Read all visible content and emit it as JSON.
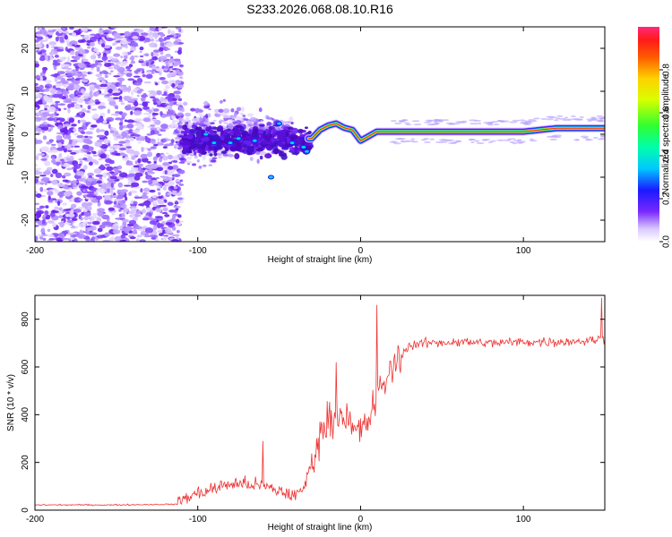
{
  "title": "S233.2026.068.08.10.R16",
  "chart_data": [
    {
      "type": "heatmap",
      "title": "S233.2026.068.08.10.R16",
      "xlabel": "Height of straight line (km)",
      "ylabel": "Frequency (Hz)",
      "xlim": [
        -200,
        150
      ],
      "ylim": [
        -25,
        25
      ],
      "xticks": [
        -200,
        -100,
        0,
        100
      ],
      "xtick_labels": [
        "-200",
        "-100",
        "0",
        "100"
      ],
      "yticks": [
        -20,
        -10,
        0,
        10,
        20
      ],
      "ytick_labels": [
        "-20",
        "-10",
        "0",
        "10",
        "20"
      ],
      "ridge": {
        "description_points_x": [
          -30,
          -25,
          -20,
          -15,
          -10,
          -5,
          0,
          10,
          30,
          60,
          100,
          120,
          150
        ],
        "frequency": [
          -1,
          1,
          2,
          2.5,
          1.5,
          1,
          -1.5,
          0.6,
          0.6,
          0.6,
          0.6,
          1.4,
          1.4
        ]
      },
      "colorbar": {
        "label": "Normalized spectral amplitude",
        "range": [
          0,
          1
        ],
        "ticks": [
          0.0,
          0.2,
          0.4,
          0.6,
          0.8
        ],
        "tick_labels": [
          "0.0",
          "0.2",
          "0.4",
          "0.6",
          "0.8"
        ]
      }
    },
    {
      "type": "line",
      "xlabel": "Height of straight line (km)",
      "ylabel": "SNR (10 * v/v)",
      "xlim": [
        -200,
        150
      ],
      "ylim": [
        0,
        900
      ],
      "xticks": [
        -200,
        -100,
        0,
        100
      ],
      "xtick_labels": [
        "-200",
        "-100",
        "0",
        "100"
      ],
      "yticks": [
        0,
        200,
        400,
        600,
        800
      ],
      "ytick_labels": [
        "0",
        "200",
        "400",
        "600",
        "800"
      ],
      "color": "#ee3333",
      "series": [
        {
          "name": "SNR",
          "x": [
            -200,
            -150,
            -112,
            -110,
            -100,
            -90,
            -80,
            -70,
            -60,
            -50,
            -40,
            -35,
            -30,
            -25,
            -20,
            -15,
            -10,
            -5,
            0,
            5,
            10,
            15,
            20,
            25,
            30,
            40,
            60,
            80,
            100,
            120,
            140,
            150
          ],
          "y": [
            22,
            22,
            25,
            45,
            70,
            90,
            110,
            110,
            100,
            80,
            60,
            90,
            200,
            310,
            380,
            400,
            410,
            330,
            330,
            380,
            470,
            540,
            600,
            650,
            690,
            700,
            705,
            700,
            705,
            705,
            710,
            720
          ],
          "spikes": [
            {
              "x": 10,
              "y": 860
            },
            {
              "x": 148,
              "y": 890
            },
            {
              "x": -15,
              "y": 620
            },
            {
              "x": -60,
              "y": 290
            }
          ]
        }
      ]
    }
  ]
}
